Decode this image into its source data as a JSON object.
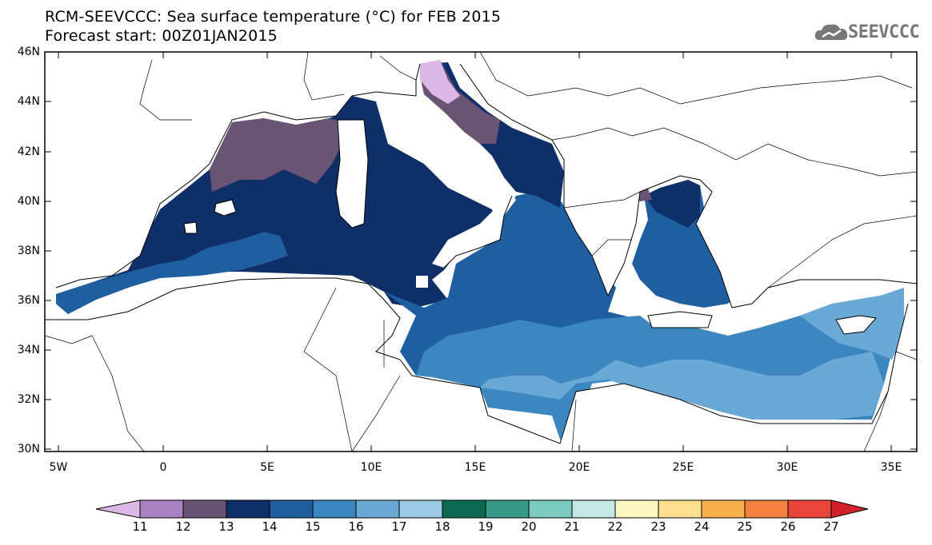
{
  "header": {
    "title_line1": "RCM-SEEVCCC: Sea surface temperature (°C) for FEB 2015",
    "title_line2": "Forecast start: 00Z01JAN2015",
    "logo_text": "SEEVCCC"
  },
  "map": {
    "lat_labels": [
      "46N",
      "44N",
      "42N",
      "40N",
      "38N",
      "36N",
      "34N",
      "32N",
      "30N"
    ],
    "lon_labels": [
      "5W",
      "0",
      "5E",
      "10E",
      "15E",
      "20E",
      "25E",
      "30E",
      "35E"
    ],
    "lon_range": [
      -5.5,
      36.5
    ],
    "lat_range": [
      29.9,
      46.0
    ]
  },
  "colorbar": {
    "labels": [
      "11",
      "12",
      "13",
      "14",
      "15",
      "16",
      "17",
      "18",
      "19",
      "20",
      "21",
      "22",
      "23",
      "24",
      "25",
      "26",
      "27"
    ],
    "colors": [
      "#dbb8e6",
      "#a882c0",
      "#6a5474",
      "#0f2f69",
      "#1f5fa0",
      "#3c87c0",
      "#6aa9d6",
      "#9cc9e6",
      "#0a6b50",
      "#3a9a8a",
      "#7ccbbf",
      "#c4e8e2",
      "#fdf7c2",
      "#fde08e",
      "#fbb04c",
      "#f4823c",
      "#e8443a",
      "#d0202c"
    ]
  }
}
